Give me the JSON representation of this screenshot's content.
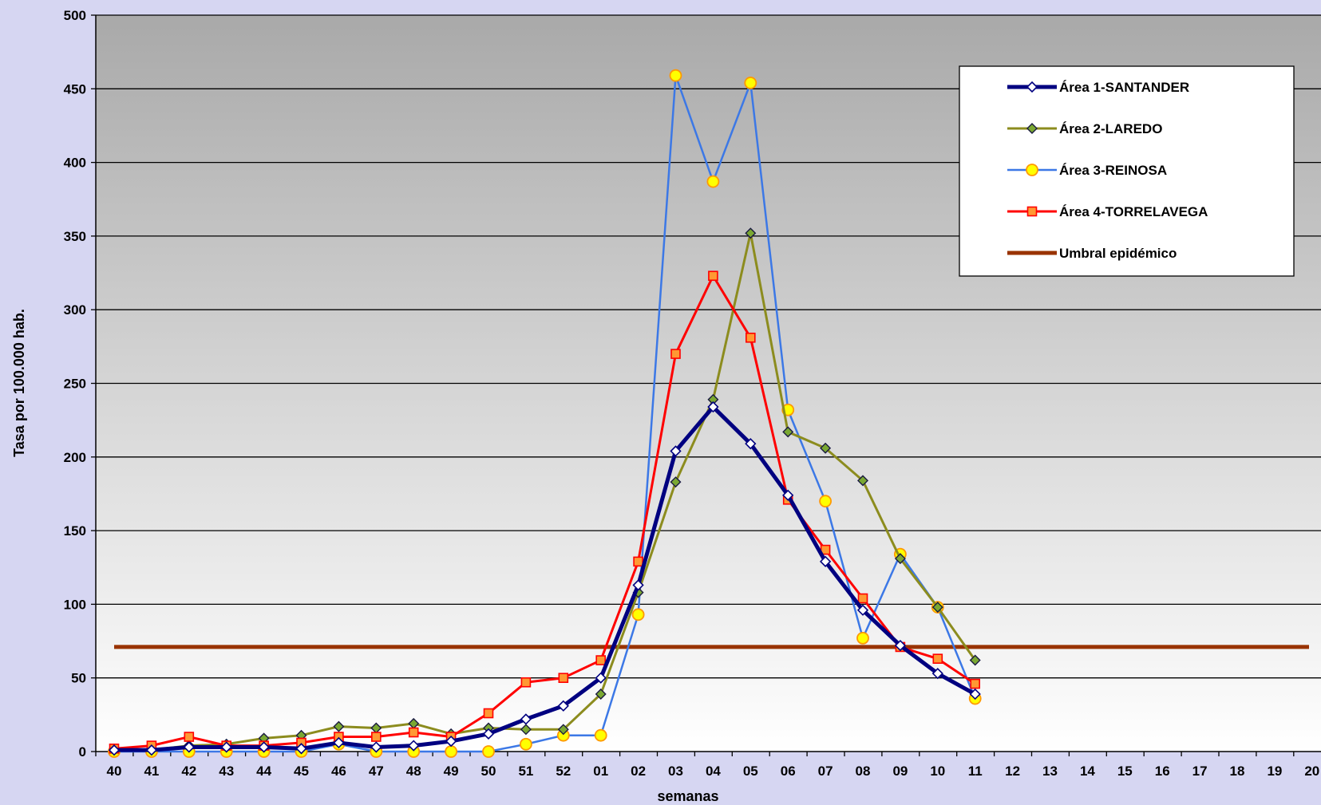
{
  "chart_data": {
    "type": "line",
    "title": "",
    "xlabel": "semanas",
    "ylabel": "Tasa por 100.000 hab.",
    "ylim": [
      0,
      500
    ],
    "yticks": [
      0,
      50,
      100,
      150,
      200,
      250,
      300,
      350,
      400,
      450,
      500
    ],
    "grid": true,
    "legend_position": "top-right",
    "categories": [
      "40",
      "41",
      "42",
      "43",
      "44",
      "45",
      "46",
      "47",
      "48",
      "49",
      "50",
      "51",
      "52",
      "01",
      "02",
      "03",
      "04",
      "05",
      "06",
      "07",
      "08",
      "09",
      "10",
      "11",
      "12",
      "13",
      "14",
      "15",
      "16",
      "17",
      "18",
      "19",
      "20"
    ],
    "series": [
      {
        "name": "Área 1-SANTANDER",
        "color": "#000080",
        "marker": "diamond-white",
        "values": [
          1,
          1,
          3,
          3,
          3,
          2,
          6,
          3,
          4,
          7,
          12,
          22,
          31,
          50,
          113,
          204,
          234,
          209,
          174,
          129,
          96,
          72,
          53,
          39,
          null,
          null,
          null,
          null,
          null,
          null,
          null,
          null,
          null
        ]
      },
      {
        "name": "Área 2-LAREDO",
        "color": "#8c8c1e",
        "marker": "diamond-green",
        "values": [
          1,
          1,
          4,
          5,
          9,
          11,
          17,
          16,
          19,
          12,
          16,
          15,
          15,
          39,
          108,
          183,
          239,
          352,
          217,
          206,
          184,
          131,
          98,
          62,
          null,
          null,
          null,
          null,
          null,
          null,
          null,
          null,
          null
        ]
      },
      {
        "name": "Área 3-REINOSA",
        "color": "#3c78e6",
        "marker": "circle-yellow",
        "values": [
          0,
          0,
          0,
          0,
          0,
          0,
          5,
          0,
          0,
          0,
          0,
          5,
          11,
          11,
          93,
          459,
          387,
          454,
          232,
          170,
          77,
          134,
          98,
          36,
          null,
          null,
          null,
          null,
          null,
          null,
          null,
          null,
          null
        ]
      },
      {
        "name": "Área 4-TORRELAVEGA",
        "color": "#ff0000",
        "marker": "square-orange",
        "values": [
          2,
          4,
          10,
          4,
          4,
          6,
          10,
          10,
          13,
          10,
          26,
          47,
          50,
          62,
          129,
          270,
          323,
          281,
          171,
          137,
          104,
          71,
          63,
          46,
          null,
          null,
          null,
          null,
          null,
          null,
          null,
          null,
          null
        ]
      },
      {
        "name": "Umbral epidémico",
        "color": "#993300",
        "marker": "none",
        "values": [
          71,
          71,
          71,
          71,
          71,
          71,
          71,
          71,
          71,
          71,
          71,
          71,
          71,
          71,
          71,
          71,
          71,
          71,
          71,
          71,
          71,
          71,
          71,
          71,
          71,
          71,
          71,
          71,
          71,
          71,
          71,
          71,
          71
        ]
      }
    ]
  }
}
